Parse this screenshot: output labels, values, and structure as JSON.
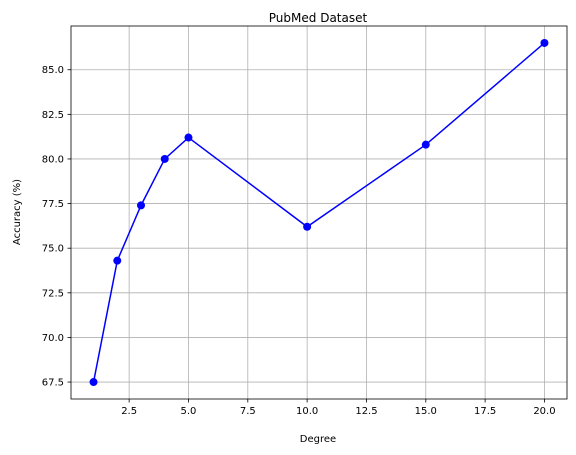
{
  "chart_data": {
    "type": "line",
    "title": "PubMed Dataset",
    "xlabel": "Degree",
    "ylabel": "Accuracy (%)",
    "xlim": [
      0.05,
      20.95
    ],
    "ylim": [
      66.55,
      87.45
    ],
    "xticks": [
      2.5,
      5.0,
      7.5,
      10.0,
      12.5,
      15.0,
      17.5,
      20.0
    ],
    "xtick_labels": [
      "2.5",
      "5.0",
      "7.5",
      "10.0",
      "12.5",
      "15.0",
      "17.5",
      "20.0"
    ],
    "yticks": [
      67.5,
      70.0,
      72.5,
      75.0,
      77.5,
      80.0,
      82.5,
      85.0
    ],
    "ytick_labels": [
      "67.5",
      "70.0",
      "72.5",
      "75.0",
      "77.5",
      "80.0",
      "82.5",
      "85.0"
    ],
    "grid": true,
    "series": [
      {
        "color": "#0000ff",
        "marker": "circle",
        "x": [
          1,
          2,
          3,
          4,
          5,
          10,
          15,
          20
        ],
        "y": [
          67.5,
          74.3,
          77.4,
          80.0,
          81.2,
          76.2,
          80.8,
          86.5
        ]
      }
    ]
  }
}
